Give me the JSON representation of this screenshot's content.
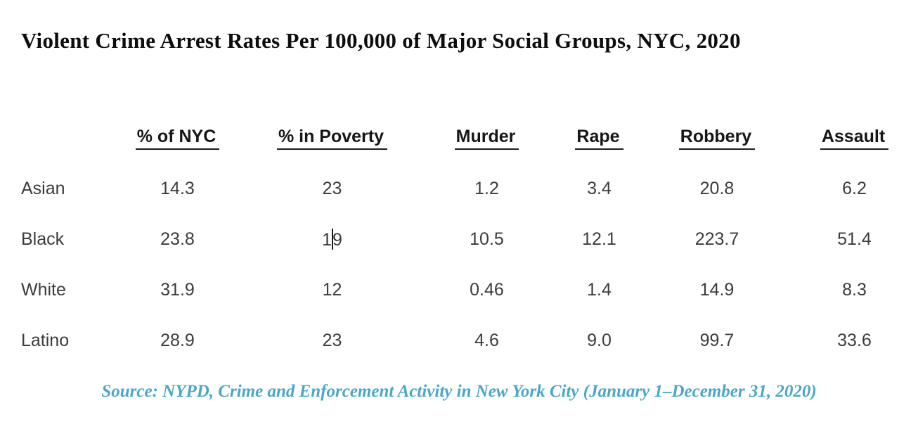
{
  "page": {
    "title": "Violent Crime Arrest Rates Per 100,000 of Major Social Groups, NYC, 2020"
  },
  "table": {
    "columns": [
      "% of NYC",
      "% in Poverty",
      "Murder",
      "Rape",
      "Robbery",
      "Assault"
    ],
    "rows": [
      {
        "label": "Asian",
        "values": [
          "14.3",
          "23",
          "1.2",
          "3.4",
          "20.8",
          "6.2"
        ]
      },
      {
        "label": "Black",
        "values": [
          "23.8",
          "19",
          "10.5",
          "12.1",
          "223.7",
          "51.4"
        ]
      },
      {
        "label": "White",
        "values": [
          "31.9",
          "12",
          "0.46",
          "1.4",
          "14.9",
          "8.3"
        ]
      },
      {
        "label": "Latino",
        "values": [
          "28.9",
          "23",
          "4.6",
          "9.0",
          "99.7",
          "33.6"
        ]
      }
    ],
    "caret_cell": {
      "row": "Black",
      "column": "% in Poverty",
      "before": "1",
      "after": "9"
    }
  },
  "source_note": "Source: NYPD, Crime and Enforcement Activity in New York City (January 1–December 31, 2020)",
  "colors": {
    "title_text": "#0d0d0d",
    "header_text": "#161616",
    "body_text": "#3c3c3c",
    "source_text": "#4ba6c9",
    "caret": "#1a1a1a",
    "background": "#ffffff"
  },
  "chart_data": {
    "type": "table",
    "title": "Violent Crime Arrest Rates Per 100,000 of Major Social Groups, NYC, 2020",
    "columns": [
      "% of NYC",
      "% in Poverty",
      "Murder",
      "Rape",
      "Robbery",
      "Assault"
    ],
    "categories": [
      "Asian",
      "Black",
      "White",
      "Latino"
    ],
    "series": [
      {
        "name": "% of NYC",
        "values": [
          14.3,
          23.8,
          31.9,
          28.9
        ]
      },
      {
        "name": "% in Poverty",
        "values": [
          23,
          19,
          12,
          23
        ]
      },
      {
        "name": "Murder",
        "values": [
          1.2,
          10.5,
          0.46,
          4.6
        ]
      },
      {
        "name": "Rape",
        "values": [
          3.4,
          12.1,
          1.4,
          9.0
        ]
      },
      {
        "name": "Robbery",
        "values": [
          20.8,
          223.7,
          14.9,
          99.7
        ]
      },
      {
        "name": "Assault",
        "values": [
          6.2,
          51.4,
          8.3,
          33.6
        ]
      }
    ],
    "source": "Source: NYPD, Crime and Enforcement Activity in New York City (January 1–December 31, 2020)"
  }
}
